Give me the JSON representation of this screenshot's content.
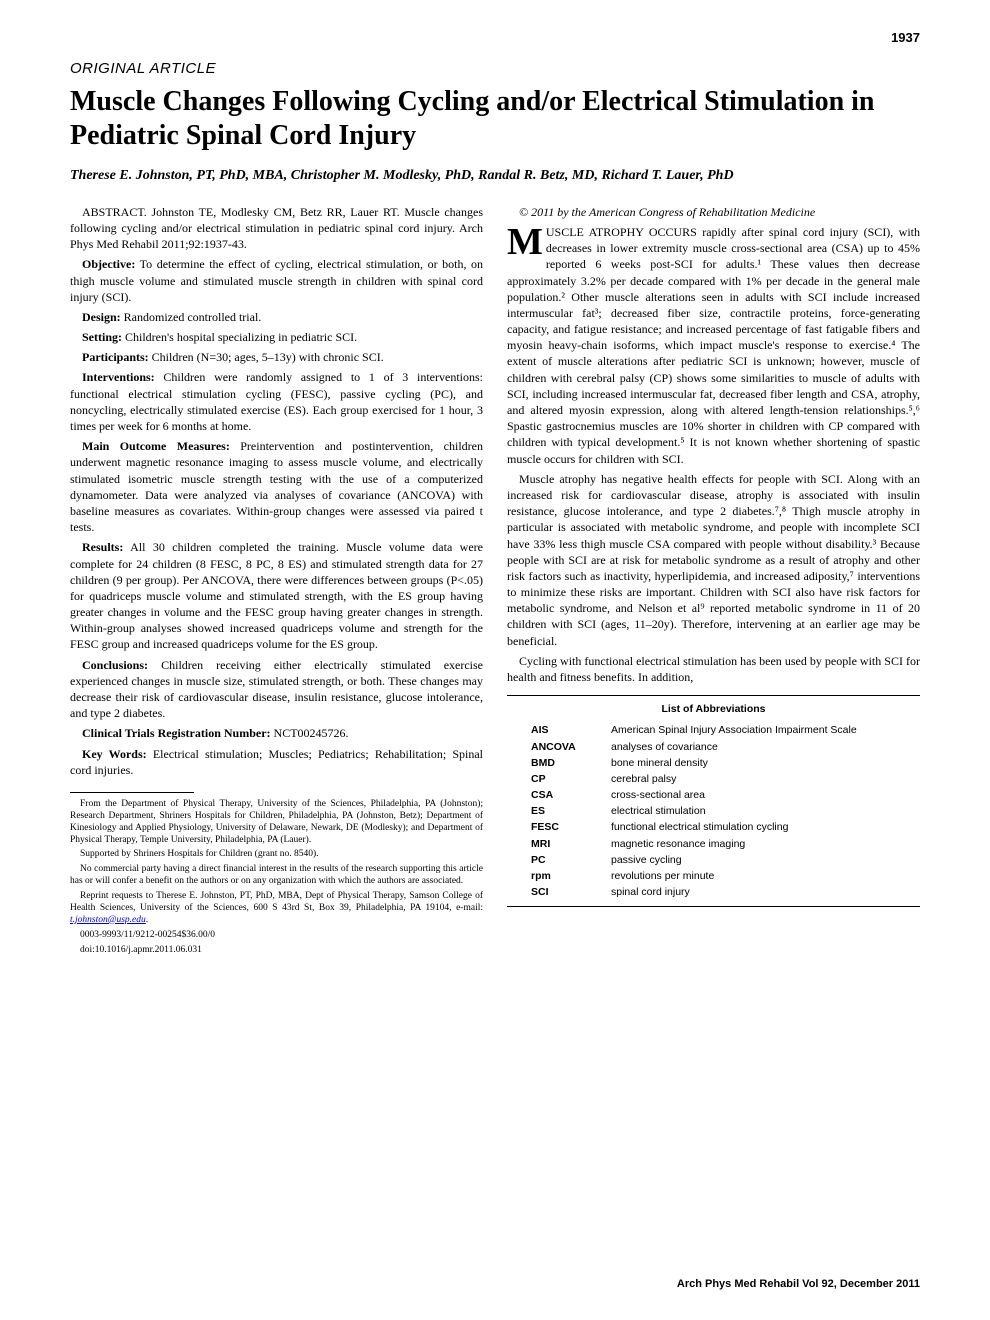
{
  "page_number": "1937",
  "article_type": "ORIGINAL ARTICLE",
  "title": "Muscle Changes Following Cycling and/or Electrical Stimulation in Pediatric Spinal Cord Injury",
  "authors": "Therese E. Johnston, PT, PhD, MBA, Christopher M. Modlesky, PhD, Randal R. Betz, MD, Richard T. Lauer, PhD",
  "abstract": {
    "citation": "ABSTRACT. Johnston TE, Modlesky CM, Betz RR, Lauer RT. Muscle changes following cycling and/or electrical stimulation in pediatric spinal cord injury. Arch Phys Med Rehabil 2011;92:1937-43.",
    "objective_label": "Objective:",
    "objective": " To determine the effect of cycling, electrical stimulation, or both, on thigh muscle volume and stimulated muscle strength in children with spinal cord injury (SCI).",
    "design_label": "Design:",
    "design": " Randomized controlled trial.",
    "setting_label": "Setting:",
    "setting": " Children's hospital specializing in pediatric SCI.",
    "participants_label": "Participants:",
    "participants": " Children (N=30; ages, 5–13y) with chronic SCI.",
    "interventions_label": "Interventions:",
    "interventions": " Children were randomly assigned to 1 of 3 interventions: functional electrical stimulation cycling (FESC), passive cycling (PC), and noncycling, electrically stimulated exercise (ES). Each group exercised for 1 hour, 3 times per week for 6 months at home.",
    "outcomes_label": "Main Outcome Measures:",
    "outcomes": " Preintervention and postintervention, children underwent magnetic resonance imaging to assess muscle volume, and electrically stimulated isometric muscle strength testing with the use of a computerized dynamometer. Data were analyzed via analyses of covariance (ANCOVA) with baseline measures as covariates. Within-group changes were assessed via paired t tests.",
    "results_label": "Results:",
    "results": " All 30 children completed the training. Muscle volume data were complete for 24 children (8 FESC, 8 PC, 8 ES) and stimulated strength data for 27 children (9 per group). Per ANCOVA, there were differences between groups (P<.05) for quadriceps muscle volume and stimulated strength, with the ES group having greater changes in volume and the FESC group having greater changes in strength. Within-group analyses showed increased quadriceps volume and strength for the FESC group and increased quadriceps volume for the ES group.",
    "conclusions_label": "Conclusions:",
    "conclusions": " Children receiving either electrically stimulated exercise experienced changes in muscle size, stimulated strength, or both. These changes may decrease their risk of cardiovascular disease, insulin resistance, glucose intolerance, and type 2 diabetes.",
    "trial_label": "Clinical Trials Registration Number:",
    "trial": " NCT00245726.",
    "keywords_label": "Key Words:",
    "keywords": " Electrical stimulation; Muscles; Pediatrics; Rehabilitation; Spinal cord injuries."
  },
  "copyright": "© 2011 by the American Congress of Rehabilitation Medicine",
  "body": {
    "p1": "MUSCLE ATROPHY OCCURS rapidly after spinal cord injury (SCI), with decreases in lower extremity muscle cross-sectional area (CSA) up to 45% reported 6 weeks post-SCI for adults.¹ These values then decrease approximately 3.2% per decade compared with 1% per decade in the general male population.² Other muscle alterations seen in adults with SCI include increased intermuscular fat³; decreased fiber size, contractile proteins, force-generating capacity, and fatigue resistance; and increased percentage of fast fatigable fibers and myosin heavy-chain isoforms, which impact muscle's response to exercise.⁴ The extent of muscle alterations after pediatric SCI is unknown; however, muscle of children with cerebral palsy (CP) shows some similarities to muscle of adults with SCI, including increased intermuscular fat, decreased fiber length and CSA, atrophy, and altered myosin expression, along with altered length-tension relationships.⁵,⁶ Spastic gastrocnemius muscles are 10% shorter in children with CP compared with children with typical development.⁵ It is not known whether shortening of spastic muscle occurs for children with SCI.",
    "p2": "Muscle atrophy has negative health effects for people with SCI. Along with an increased risk for cardiovascular disease, atrophy is associated with insulin resistance, glucose intolerance, and type 2 diabetes.⁷,⁸ Thigh muscle atrophy in particular is associated with metabolic syndrome, and people with incomplete SCI have 33% less thigh muscle CSA compared with people without disability.³ Because people with SCI are at risk for metabolic syndrome as a result of atrophy and other risk factors such as inactivity, hyperlipidemia, and increased adiposity,⁷ interventions to minimize these risks are important. Children with SCI also have risk factors for metabolic syndrome, and Nelson et al⁹ reported metabolic syndrome in 11 of 20 children with SCI (ages, 11–20y). Therefore, intervening at an earlier age may be beneficial.",
    "p3": "Cycling with functional electrical stimulation has been used by people with SCI for health and fitness benefits. In addition,"
  },
  "footnotes": {
    "from": "From the Department of Physical Therapy, University of the Sciences, Philadelphia, PA (Johnston); Research Department, Shriners Hospitals for Children, Philadelphia, PA (Johnston, Betz); Department of Kinesiology and Applied Physiology, University of Delaware, Newark, DE (Modlesky); and Department of Physical Therapy, Temple University, Philadelphia, PA (Lauer).",
    "support": "Supported by Shriners Hospitals for Children (grant no. 8540).",
    "commercial": "No commercial party having a direct financial interest in the results of the research supporting this article has or will confer a benefit on the authors or on any organization with which the authors are associated.",
    "reprint": "Reprint requests to Therese E. Johnston, PT, PhD, MBA, Dept of Physical Therapy, Samson College of Health Sciences, University of the Sciences, 600 S 43rd St, Box 39, Philadelphia, PA 19104, e-mail: ",
    "email": "t.johnston@usp.edu",
    "issn": "0003-9993/11/9212-00254$36.00/0",
    "doi": "doi:10.1016/j.apmr.2011.06.031"
  },
  "abbreviations": {
    "title": "List of Abbreviations",
    "items": [
      {
        "key": "AIS",
        "val": "American Spinal Injury Association Impairment Scale"
      },
      {
        "key": "ANCOVA",
        "val": "analyses of covariance"
      },
      {
        "key": "BMD",
        "val": "bone mineral density"
      },
      {
        "key": "CP",
        "val": "cerebral palsy"
      },
      {
        "key": "CSA",
        "val": "cross-sectional area"
      },
      {
        "key": "ES",
        "val": "electrical stimulation"
      },
      {
        "key": "FESC",
        "val": "functional electrical stimulation cycling"
      },
      {
        "key": "MRI",
        "val": "magnetic resonance imaging"
      },
      {
        "key": "PC",
        "val": "passive cycling"
      },
      {
        "key": "rpm",
        "val": "revolutions per minute"
      },
      {
        "key": "SCI",
        "val": "spinal cord injury"
      }
    ]
  },
  "footer": "Arch Phys Med Rehabil Vol 92, December 2011"
}
